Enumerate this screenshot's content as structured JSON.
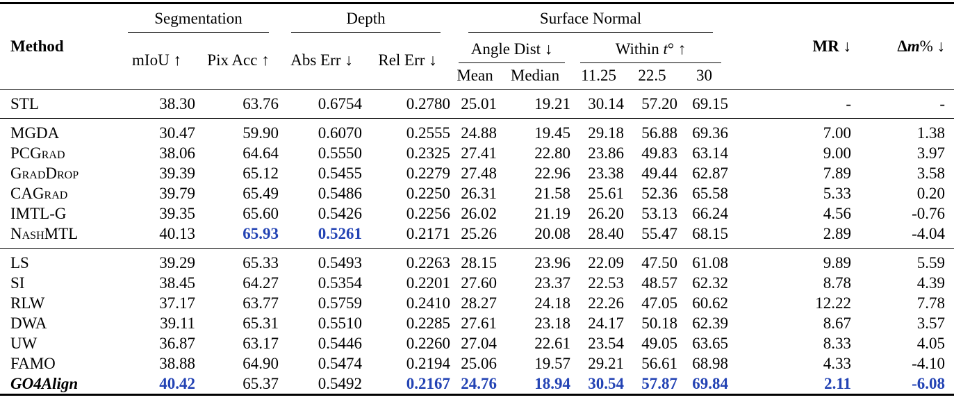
{
  "colors": {
    "accent_blue": "#2343b4",
    "text": "#000000",
    "background": "#ffffff"
  },
  "table": {
    "header": {
      "method_label": "Method",
      "groups": {
        "segmentation": "Segmentation",
        "depth": "Depth",
        "surface_normal": "Surface Normal"
      },
      "metrics": {
        "miou": "mIoU ↑",
        "pix_acc": "Pix Acc ↑",
        "abs_err": "Abs Err ↓",
        "rel_err": "Rel Err ↓",
        "angle_dist": "Angle Dist ↓",
        "within_prefix": "Within ",
        "within_t": "t",
        "within_suffix": "° ↑",
        "mr": "MR",
        "mr_arrow": " ↓",
        "dm_delta": "Δ",
        "dm_m": "m",
        "dm_rest": "% ↓"
      },
      "sub_columns": [
        "Mean",
        "Median",
        "11.25",
        "22.5",
        "30"
      ]
    },
    "rows": [
      {
        "method": "STL",
        "variant": "plain",
        "rule_after": true,
        "hl": [],
        "cells": [
          "38.30",
          "63.76",
          "0.6754",
          "0.2780",
          "25.01",
          "19.21",
          "30.14",
          "57.20",
          "69.15",
          "-",
          "-"
        ]
      },
      {
        "method": "MGDA",
        "variant": "plain",
        "rule_after": false,
        "hl": [],
        "cells": [
          "30.47",
          "59.90",
          "0.6070",
          "0.2555",
          "24.88",
          "19.45",
          "29.18",
          "56.88",
          "69.36",
          "7.00",
          "1.38"
        ]
      },
      {
        "method": "PCGrad",
        "variant": "sc",
        "rule_after": false,
        "hl": [],
        "cells": [
          "38.06",
          "64.64",
          "0.5550",
          "0.2325",
          "27.41",
          "22.80",
          "23.86",
          "49.83",
          "63.14",
          "9.00",
          "3.97"
        ]
      },
      {
        "method": "GradDrop",
        "variant": "sc",
        "rule_after": false,
        "hl": [],
        "cells": [
          "39.39",
          "65.12",
          "0.5455",
          "0.2279",
          "27.48",
          "22.96",
          "23.38",
          "49.44",
          "62.87",
          "7.89",
          "3.58"
        ]
      },
      {
        "method": "CAGrad",
        "variant": "sc",
        "rule_after": false,
        "hl": [],
        "cells": [
          "39.79",
          "65.49",
          "0.5486",
          "0.2250",
          "26.31",
          "21.58",
          "25.61",
          "52.36",
          "65.58",
          "5.33",
          "0.20"
        ]
      },
      {
        "method": "IMTL-G",
        "variant": "plain",
        "rule_after": false,
        "hl": [],
        "cells": [
          "39.35",
          "65.60",
          "0.5426",
          "0.2256",
          "26.02",
          "21.19",
          "26.20",
          "53.13",
          "66.24",
          "4.56",
          "-0.76"
        ]
      },
      {
        "method": "NashMTL",
        "variant": "sc",
        "rule_after": true,
        "hl": [
          1,
          2
        ],
        "cells": [
          "40.13",
          "65.93",
          "0.5261",
          "0.2171",
          "25.26",
          "20.08",
          "28.40",
          "55.47",
          "68.15",
          "2.89",
          "-4.04"
        ]
      },
      {
        "method": "LS",
        "variant": "plain",
        "rule_after": false,
        "hl": [],
        "cells": [
          "39.29",
          "65.33",
          "0.5493",
          "0.2263",
          "28.15",
          "23.96",
          "22.09",
          "47.50",
          "61.08",
          "9.89",
          "5.59"
        ]
      },
      {
        "method": "SI",
        "variant": "plain",
        "rule_after": false,
        "hl": [],
        "cells": [
          "38.45",
          "64.27",
          "0.5354",
          "0.2201",
          "27.60",
          "23.37",
          "22.53",
          "48.57",
          "62.32",
          "8.78",
          "4.39"
        ]
      },
      {
        "method": "RLW",
        "variant": "plain",
        "rule_after": false,
        "hl": [],
        "cells": [
          "37.17",
          "63.77",
          "0.5759",
          "0.2410",
          "28.27",
          "24.18",
          "22.26",
          "47.05",
          "60.62",
          "12.22",
          "7.78"
        ]
      },
      {
        "method": "DWA",
        "variant": "plain",
        "rule_after": false,
        "hl": [],
        "cells": [
          "39.11",
          "65.31",
          "0.5510",
          "0.2285",
          "27.61",
          "23.18",
          "24.17",
          "50.18",
          "62.39",
          "8.67",
          "3.57"
        ]
      },
      {
        "method": "UW",
        "variant": "plain",
        "rule_after": false,
        "hl": [],
        "cells": [
          "36.87",
          "63.17",
          "0.5446",
          "0.2260",
          "27.04",
          "22.61",
          "23.54",
          "49.05",
          "63.65",
          "8.33",
          "4.05"
        ]
      },
      {
        "method": "FAMO",
        "variant": "plain",
        "rule_after": false,
        "hl": [],
        "cells": [
          "38.88",
          "64.90",
          "0.5474",
          "0.2194",
          "25.06",
          "19.57",
          "29.21",
          "56.61",
          "68.98",
          "4.33",
          "-4.10"
        ]
      },
      {
        "method": "GO4Align",
        "variant": "bolditalic",
        "rule_after": false,
        "hl": [
          0,
          3,
          4,
          5,
          6,
          7,
          8,
          9,
          10
        ],
        "cells": [
          "40.42",
          "65.37",
          "0.5492",
          "0.2167",
          "24.76",
          "18.94",
          "30.54",
          "57.87",
          "69.84",
          "2.11",
          "-6.08"
        ]
      }
    ]
  }
}
